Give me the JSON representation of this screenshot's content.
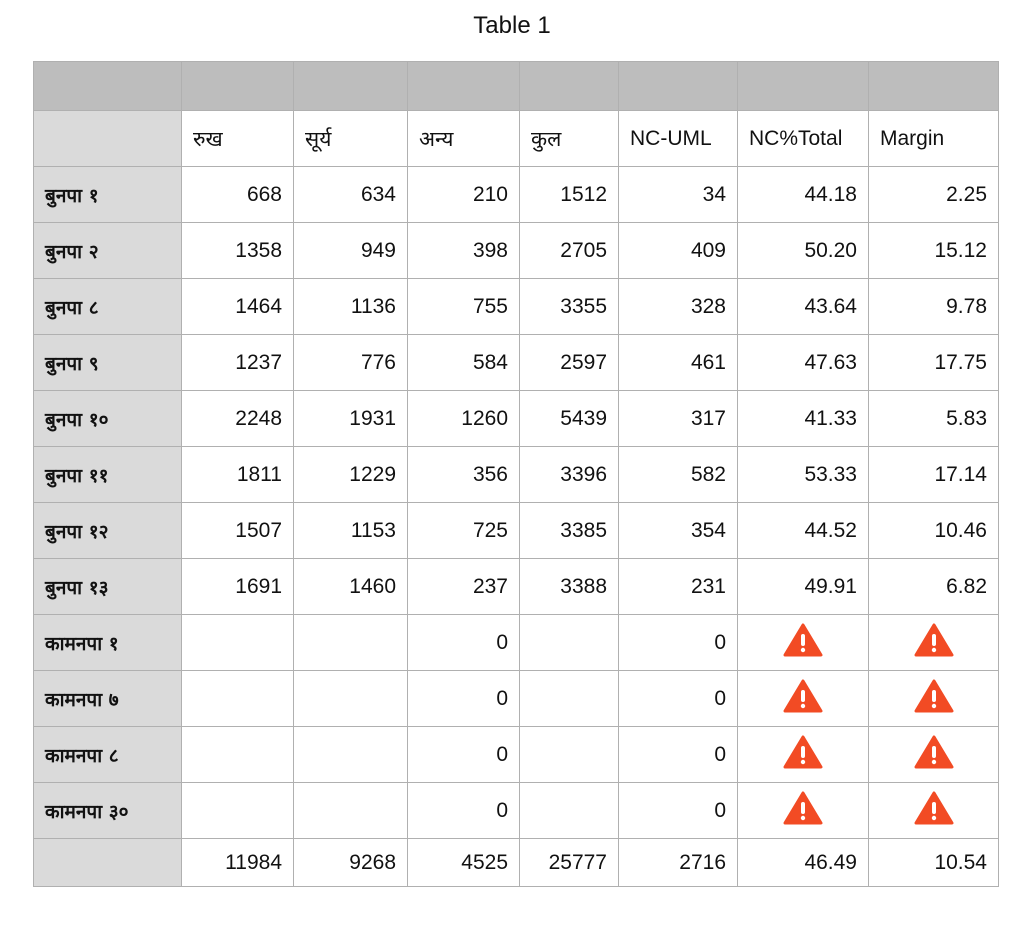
{
  "title": "Table 1",
  "table": {
    "columns": [
      "रुख",
      "सूर्य",
      "अन्य",
      "कुल",
      "NC-UML",
      "NC%Total",
      "Margin"
    ],
    "rows": [
      {
        "label": "बुनपा १",
        "cells": [
          "668",
          "634",
          "210",
          "1512",
          "34",
          "44.18",
          "2.25"
        ]
      },
      {
        "label": "बुनपा २",
        "cells": [
          "1358",
          "949",
          "398",
          "2705",
          "409",
          "50.20",
          "15.12"
        ]
      },
      {
        "label": "बुनपा ८",
        "cells": [
          "1464",
          "1136",
          "755",
          "3355",
          "328",
          "43.64",
          "9.78"
        ]
      },
      {
        "label": "बुनपा ९",
        "cells": [
          "1237",
          "776",
          "584",
          "2597",
          "461",
          "47.63",
          "17.75"
        ]
      },
      {
        "label": "बुनपा १०",
        "cells": [
          "2248",
          "1931",
          "1260",
          "5439",
          "317",
          "41.33",
          "5.83"
        ]
      },
      {
        "label": "बुनपा ११",
        "cells": [
          "1811",
          "1229",
          "356",
          "3396",
          "582",
          "53.33",
          "17.14"
        ]
      },
      {
        "label": "बुनपा १२",
        "cells": [
          "1507",
          "1153",
          "725",
          "3385",
          "354",
          "44.52",
          "10.46"
        ]
      },
      {
        "label": "बुनपा १३",
        "cells": [
          "1691",
          "1460",
          "237",
          "3388",
          "231",
          "49.91",
          "6.82"
        ]
      },
      {
        "label": "कामनपा १",
        "cells": [
          null,
          null,
          "0",
          null,
          "0",
          null,
          null
        ]
      },
      {
        "label": "कामनपा ७",
        "cells": [
          null,
          null,
          "0",
          null,
          "0",
          null,
          null
        ]
      },
      {
        "label": "कामनपा ८",
        "cells": [
          null,
          null,
          "0",
          null,
          "0",
          null,
          null
        ]
      },
      {
        "label": "कामनपा ३०",
        "cells": [
          null,
          null,
          "0",
          null,
          "0",
          null,
          null
        ]
      }
    ],
    "footer": [
      "11984",
      "9268",
      "4525",
      "25777",
      "2716",
      "46.49",
      "10.54"
    ]
  }
}
